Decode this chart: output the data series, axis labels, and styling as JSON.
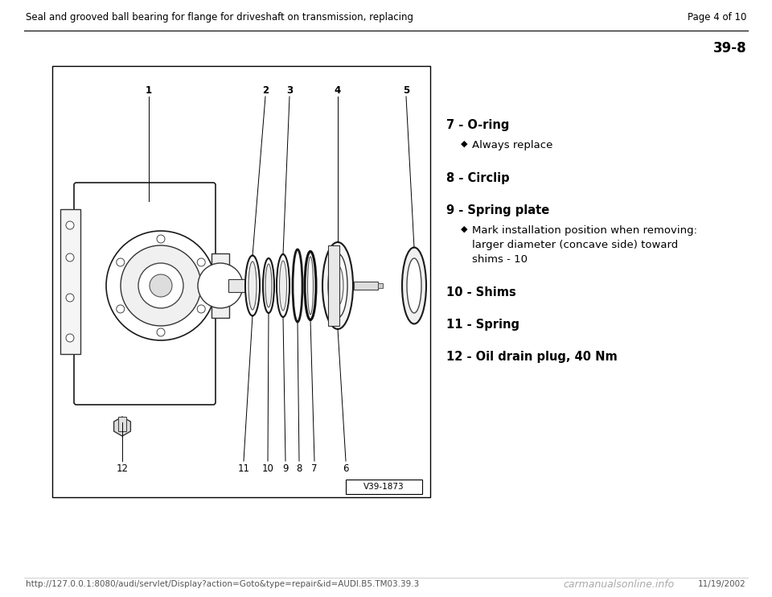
{
  "bg_color": "#ffffff",
  "header_text": "Seal and grooved ball bearing for flange for driveshaft on transmission, replacing",
  "page_text": "Page 4 of 10",
  "ref_number": "39-8",
  "footer_url": "http://127.0.0.1:8080/audi/servlet/Display?action=Goto&type=repair&id=AUDI.B5.TM03.39.3",
  "footer_date": "11/19/2002",
  "footer_watermark": "carmanualsonline.info",
  "diagram_label": "V39-1873",
  "items": [
    {
      "number": "7",
      "label": "O-ring",
      "sub": [
        "Always replace"
      ]
    },
    {
      "number": "8",
      "label": "Circlip",
      "sub": []
    },
    {
      "number": "9",
      "label": "Spring plate",
      "sub": [
        "Mark installation position when removing:\nlarger diameter (concave side) toward\nshims - 10"
      ]
    },
    {
      "number": "10",
      "label": "Shims",
      "sub": []
    },
    {
      "number": "11",
      "label": "Spring",
      "sub": []
    },
    {
      "number": "12",
      "label": "Oil drain plug, 40 Nm",
      "sub": []
    }
  ],
  "sub_bullet": "◆",
  "font_size_header": 8.5,
  "font_size_item": 10.5,
  "font_size_sub": 9.5,
  "font_size_ref": 12,
  "font_size_footer": 7.5,
  "font_size_label": 8.5
}
